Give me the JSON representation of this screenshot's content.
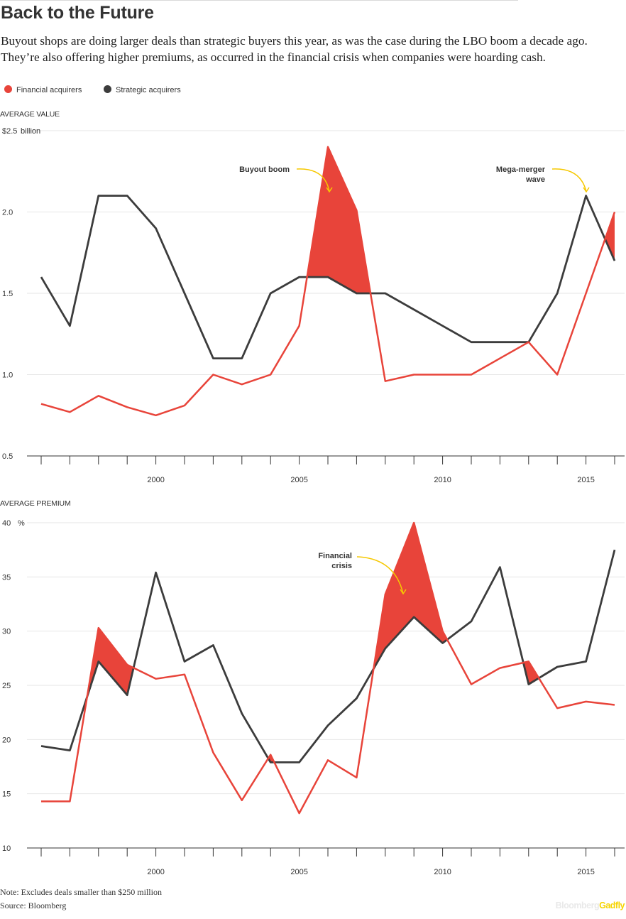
{
  "title": "Back to the Future",
  "subtitle": "Buyout shops are doing larger deals  than strategic buyers this year, as was the case during the LBO boom a decade ago. They’re also offering higher premiums, as occurred in the financial crisis when companies were hoarding cash.",
  "legend": [
    {
      "label": "Financial acquirers",
      "color": "#e8443a"
    },
    {
      "label": "Strategic acquirers",
      "color": "#3c3c3c"
    }
  ],
  "colors": {
    "financial": "#e8443a",
    "strategic": "#3c3c3c",
    "grid": "#e6e6e6",
    "axis": "#333333",
    "annotation_arrow": "#f6c800"
  },
  "chart_data": [
    {
      "type": "line",
      "panel_title": "AVERAGE VALUE",
      "unit_label": "billion",
      "x": [
        1996,
        1997,
        1998,
        1999,
        2000,
        2001,
        2002,
        2003,
        2004,
        2005,
        2006,
        2007,
        2008,
        2009,
        2010,
        2011,
        2012,
        2013,
        2014,
        2015,
        2016
      ],
      "x_ticks": [
        2000,
        2005,
        2010,
        2015
      ],
      "y_ticks": [
        0.5,
        1.0,
        1.5,
        2.0,
        2.5
      ],
      "y_tick_labels": [
        "0.5",
        "1.0",
        "1.5",
        "2.0",
        "$2.5"
      ],
      "ylim": [
        0.5,
        2.5
      ],
      "grid": true,
      "fill": "between series, where Financial acquirers is above Strategic acquirers",
      "series": [
        {
          "name": "Financial acquirers",
          "values": [
            0.82,
            0.77,
            0.87,
            0.8,
            0.75,
            0.81,
            1.0,
            0.94,
            1.0,
            1.3,
            2.4,
            2.01,
            0.96,
            1.0,
            1.0,
            1.0,
            1.1,
            1.2,
            1.0,
            1.5,
            2.0
          ]
        },
        {
          "name": "Strategic acquirers",
          "values": [
            1.6,
            1.3,
            2.1,
            2.1,
            1.9,
            1.5,
            1.1,
            1.1,
            1.5,
            1.6,
            1.6,
            1.5,
            1.5,
            1.4,
            1.3,
            1.2,
            1.2,
            1.2,
            1.5,
            2.1,
            1.7
          ]
        }
      ],
      "annotations": [
        {
          "text": [
            "Buyout boom"
          ],
          "x": 2006
        },
        {
          "text": [
            "Mega-merger",
            "wave"
          ],
          "x": 2015
        }
      ]
    },
    {
      "type": "line",
      "panel_title": "AVERAGE PREMIUM",
      "unit_label": "%",
      "x": [
        1996,
        1997,
        1998,
        1999,
        2000,
        2001,
        2002,
        2003,
        2004,
        2005,
        2006,
        2007,
        2008,
        2009,
        2010,
        2011,
        2012,
        2013,
        2014,
        2015,
        2016
      ],
      "x_ticks": [
        2000,
        2005,
        2010,
        2015
      ],
      "y_ticks": [
        10,
        15,
        20,
        25,
        30,
        35,
        40
      ],
      "y_tick_labels": [
        "10",
        "15",
        "20",
        "25",
        "30",
        "35",
        "40"
      ],
      "ylim": [
        10,
        40
      ],
      "grid": true,
      "fill": "between series, where Financial acquirers is above Strategic acquirers",
      "series": [
        {
          "name": "Financial acquirers",
          "values": [
            14.3,
            14.3,
            30.3,
            26.9,
            25.6,
            26.0,
            18.8,
            14.4,
            18.6,
            13.2,
            18.1,
            16.5,
            33.4,
            40.0,
            30.0,
            25.1,
            26.6,
            27.2,
            22.9,
            23.5,
            23.2
          ]
        },
        {
          "name": "Strategic acquirers",
          "values": [
            19.4,
            19.0,
            27.2,
            24.1,
            35.4,
            27.2,
            28.7,
            22.4,
            17.9,
            17.9,
            21.3,
            23.8,
            28.4,
            31.3,
            28.9,
            30.9,
            35.9,
            25.1,
            26.7,
            27.2,
            37.5
          ]
        }
      ],
      "annotations": [
        {
          "text": [
            "Financial",
            "crisis"
          ],
          "x": 2008.7
        }
      ]
    }
  ],
  "notes": [
    "Note: Excludes deals smaller than $250 million",
    "Source: Bloomberg"
  ],
  "brand": {
    "part1": "Bloomberg",
    "part2": "Gadfly"
  }
}
